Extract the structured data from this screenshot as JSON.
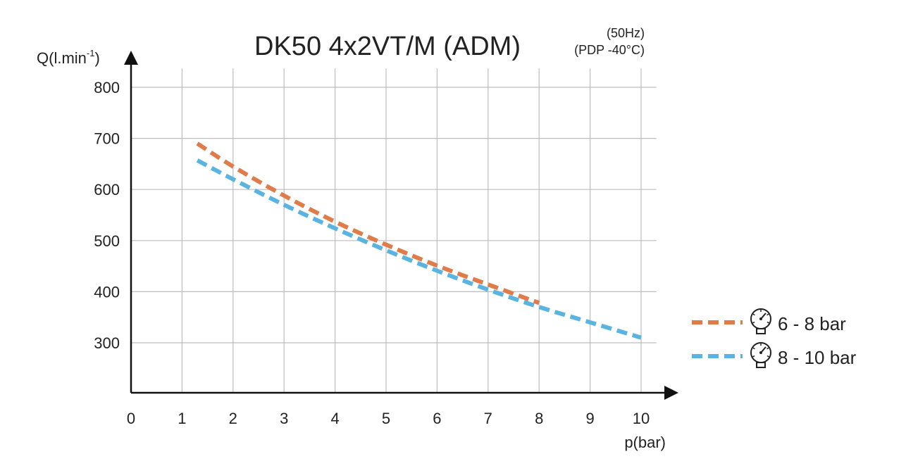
{
  "chart_data": {
    "type": "line",
    "title": "DK50 4x2VT/M (ADM)",
    "subtitle_lines": [
      "(50Hz)",
      "(PDP -40°C)"
    ],
    "xlabel": "p(bar)",
    "ylabel": "Q(l.min",
    "ylabel_superscript": "-1",
    "ylabel_close": ")",
    "xlim": [
      0,
      10.3
    ],
    "ylim": [
      200,
      830
    ],
    "xticks": [
      0,
      1,
      2,
      3,
      4,
      5,
      6,
      7,
      8,
      9,
      10
    ],
    "yticks": [
      300,
      400,
      500,
      600,
      700,
      800
    ],
    "grid": true,
    "legend_position": "right",
    "series": [
      {
        "name": "6 - 8 bar",
        "color": "#E07B4A",
        "style": "dashed",
        "icon": "pressure-gauge-icon",
        "x": [
          1.3,
          2,
          3,
          4,
          5,
          6,
          7,
          8
        ],
        "y": [
          690,
          645,
          588,
          537,
          492,
          451,
          414,
          378
        ]
      },
      {
        "name": "8 - 10 bar",
        "color": "#5BB4E0",
        "style": "dashed",
        "icon": "pressure-gauge-icon",
        "x": [
          1.3,
          2,
          3,
          4,
          5,
          6,
          7,
          8,
          9,
          10
        ],
        "y": [
          657,
          620,
          570,
          524,
          481,
          441,
          404,
          370,
          340,
          310
        ]
      }
    ]
  }
}
